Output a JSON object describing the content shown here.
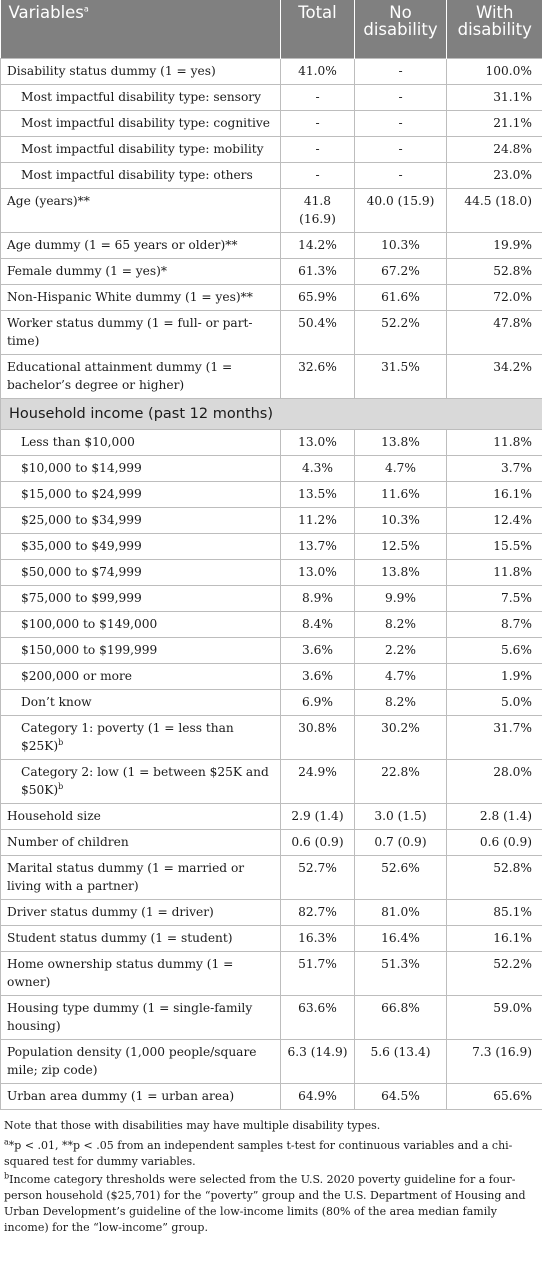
{
  "header": {
    "variables": "Variables",
    "variables_sup": "a",
    "total": "Total",
    "no_disability": "No disability",
    "with_disability": "With disability"
  },
  "rows_top": [
    {
      "label": "Disability status dummy (1 = yes)",
      "total": "41.0%",
      "no": "-",
      "with": "100.0%"
    },
    {
      "label": "Most impactful disability type: sensory",
      "total": "-",
      "no": "-",
      "with": "31.1%",
      "indent": true
    },
    {
      "label": "Most impactful disability type: cognitive",
      "total": "-",
      "no": "-",
      "with": "21.1%",
      "indent": true
    },
    {
      "label": "Most impactful disability type: mobility",
      "total": "-",
      "no": "-",
      "with": "24.8%",
      "indent": true
    },
    {
      "label": "Most impactful disability type: others",
      "total": "-",
      "no": "-",
      "with": "23.0%",
      "indent": true
    },
    {
      "label": "Age (years)**",
      "total": "41.8 (16.9)",
      "no": "40.0 (15.9)",
      "with": "44.5 (18.0)"
    },
    {
      "label": "Age dummy (1 = 65 years or older)**",
      "total": "14.2%",
      "no": "10.3%",
      "with": "19.9%"
    },
    {
      "label": "Female dummy (1 = yes)*",
      "total": "61.3%",
      "no": "67.2%",
      "with": "52.8%"
    },
    {
      "label": "Non-Hispanic White dummy (1 = yes)**",
      "total": "65.9%",
      "no": "61.6%",
      "with": "72.0%"
    },
    {
      "label": "Worker status dummy (1 = full- or part-time)",
      "total": "50.4%",
      "no": "52.2%",
      "with": "47.8%"
    },
    {
      "label": "Educational attainment dummy (1 = bachelor’s degree or higher)",
      "total": "32.6%",
      "no": "31.5%",
      "with": "34.2%"
    }
  ],
  "section_income": "Household income (past 12 months)",
  "rows_income": [
    {
      "label": "Less than $10,000",
      "total": "13.0%",
      "no": "13.8%",
      "with": "11.8%"
    },
    {
      "label": "$10,000 to $14,999",
      "total": "4.3%",
      "no": "4.7%",
      "with": "3.7%"
    },
    {
      "label": "$15,000 to $24,999",
      "total": "13.5%",
      "no": "11.6%",
      "with": "16.1%"
    },
    {
      "label": "$25,000 to $34,999",
      "total": "11.2%",
      "no": "10.3%",
      "with": "12.4%"
    },
    {
      "label": "$35,000 to $49,999",
      "total": "13.7%",
      "no": "12.5%",
      "with": "15.5%"
    },
    {
      "label": "$50,000 to $74,999",
      "total": "13.0%",
      "no": "13.8%",
      "with": "11.8%"
    },
    {
      "label": "$75,000 to $99,999",
      "total": "8.9%",
      "no": "9.9%",
      "with": "7.5%"
    },
    {
      "label": "$100,000 to $149,000",
      "total": "8.4%",
      "no": "8.2%",
      "with": "8.7%"
    },
    {
      "label": "$150,000 to $199,999",
      "total": "3.6%",
      "no": "2.2%",
      "with": "5.6%"
    },
    {
      "label": "$200,000 or more",
      "total": "3.6%",
      "no": "4.7%",
      "with": "1.9%"
    },
    {
      "label": "Don’t know",
      "total": "6.9%",
      "no": "8.2%",
      "with": "5.0%"
    },
    {
      "label": "Category 1: poverty (1 = less than $25K)",
      "sup": "b",
      "total": "30.8%",
      "no": "30.2%",
      "with": "31.7%"
    },
    {
      "label": "Category 2: low (1 = between $25K and $50K)",
      "sup": "b",
      "total": "24.9%",
      "no": "22.8%",
      "with": "28.0%"
    }
  ],
  "rows_bottom": [
    {
      "label": "Household size",
      "total": "2.9 (1.4)",
      "no": "3.0 (1.5)",
      "with": "2.8 (1.4)"
    },
    {
      "label": "Number of children",
      "total": "0.6 (0.9)",
      "no": "0.7 (0.9)",
      "with": "0.6 (0.9)"
    },
    {
      "label": "Marital status dummy (1 = married or living with a partner)",
      "total": "52.7%",
      "no": "52.6%",
      "with": "52.8%"
    },
    {
      "label": "Driver status dummy (1 = driver)",
      "total": "82.7%",
      "no": "81.0%",
      "with": "85.1%"
    },
    {
      "label": "Student status dummy (1 = student)",
      "total": "16.3%",
      "no": "16.4%",
      "with": "16.1%"
    },
    {
      "label": "Home ownership status dummy (1 = owner)",
      "total": "51.7%",
      "no": "51.3%",
      "with": "52.2%"
    },
    {
      "label": "Housing type dummy (1 = single-family housing)",
      "total": "63.6%",
      "no": "66.8%",
      "with": "59.0%"
    },
    {
      "label": "Population density (1,000 people/square mile; zip code)",
      "total": "6.3 (14.9)",
      "no": "5.6 (13.4)",
      "with": "7.3 (16.9)"
    },
    {
      "label": "Urban area dummy (1 = urban area)",
      "total": "64.9%",
      "no": "64.5%",
      "with": "65.6%"
    }
  ],
  "notes": {
    "n1": "Note that those with disabilities may have multiple disability types.",
    "n2_sup": "a",
    "n2": "*p < .01, **p < .05 from an independent samples t-test for continuous variables and a chi-squared test for dummy variables.",
    "n3_sup": "b",
    "n3": "Income category thresholds were selected from the U.S. 2020 poverty guideline for a four-person household ($25,701) for the “poverty” group and the U.S. Department of Housing and Urban Development’s guideline of the low-income limits (80% of the area median family income) for the “low-income” group."
  }
}
